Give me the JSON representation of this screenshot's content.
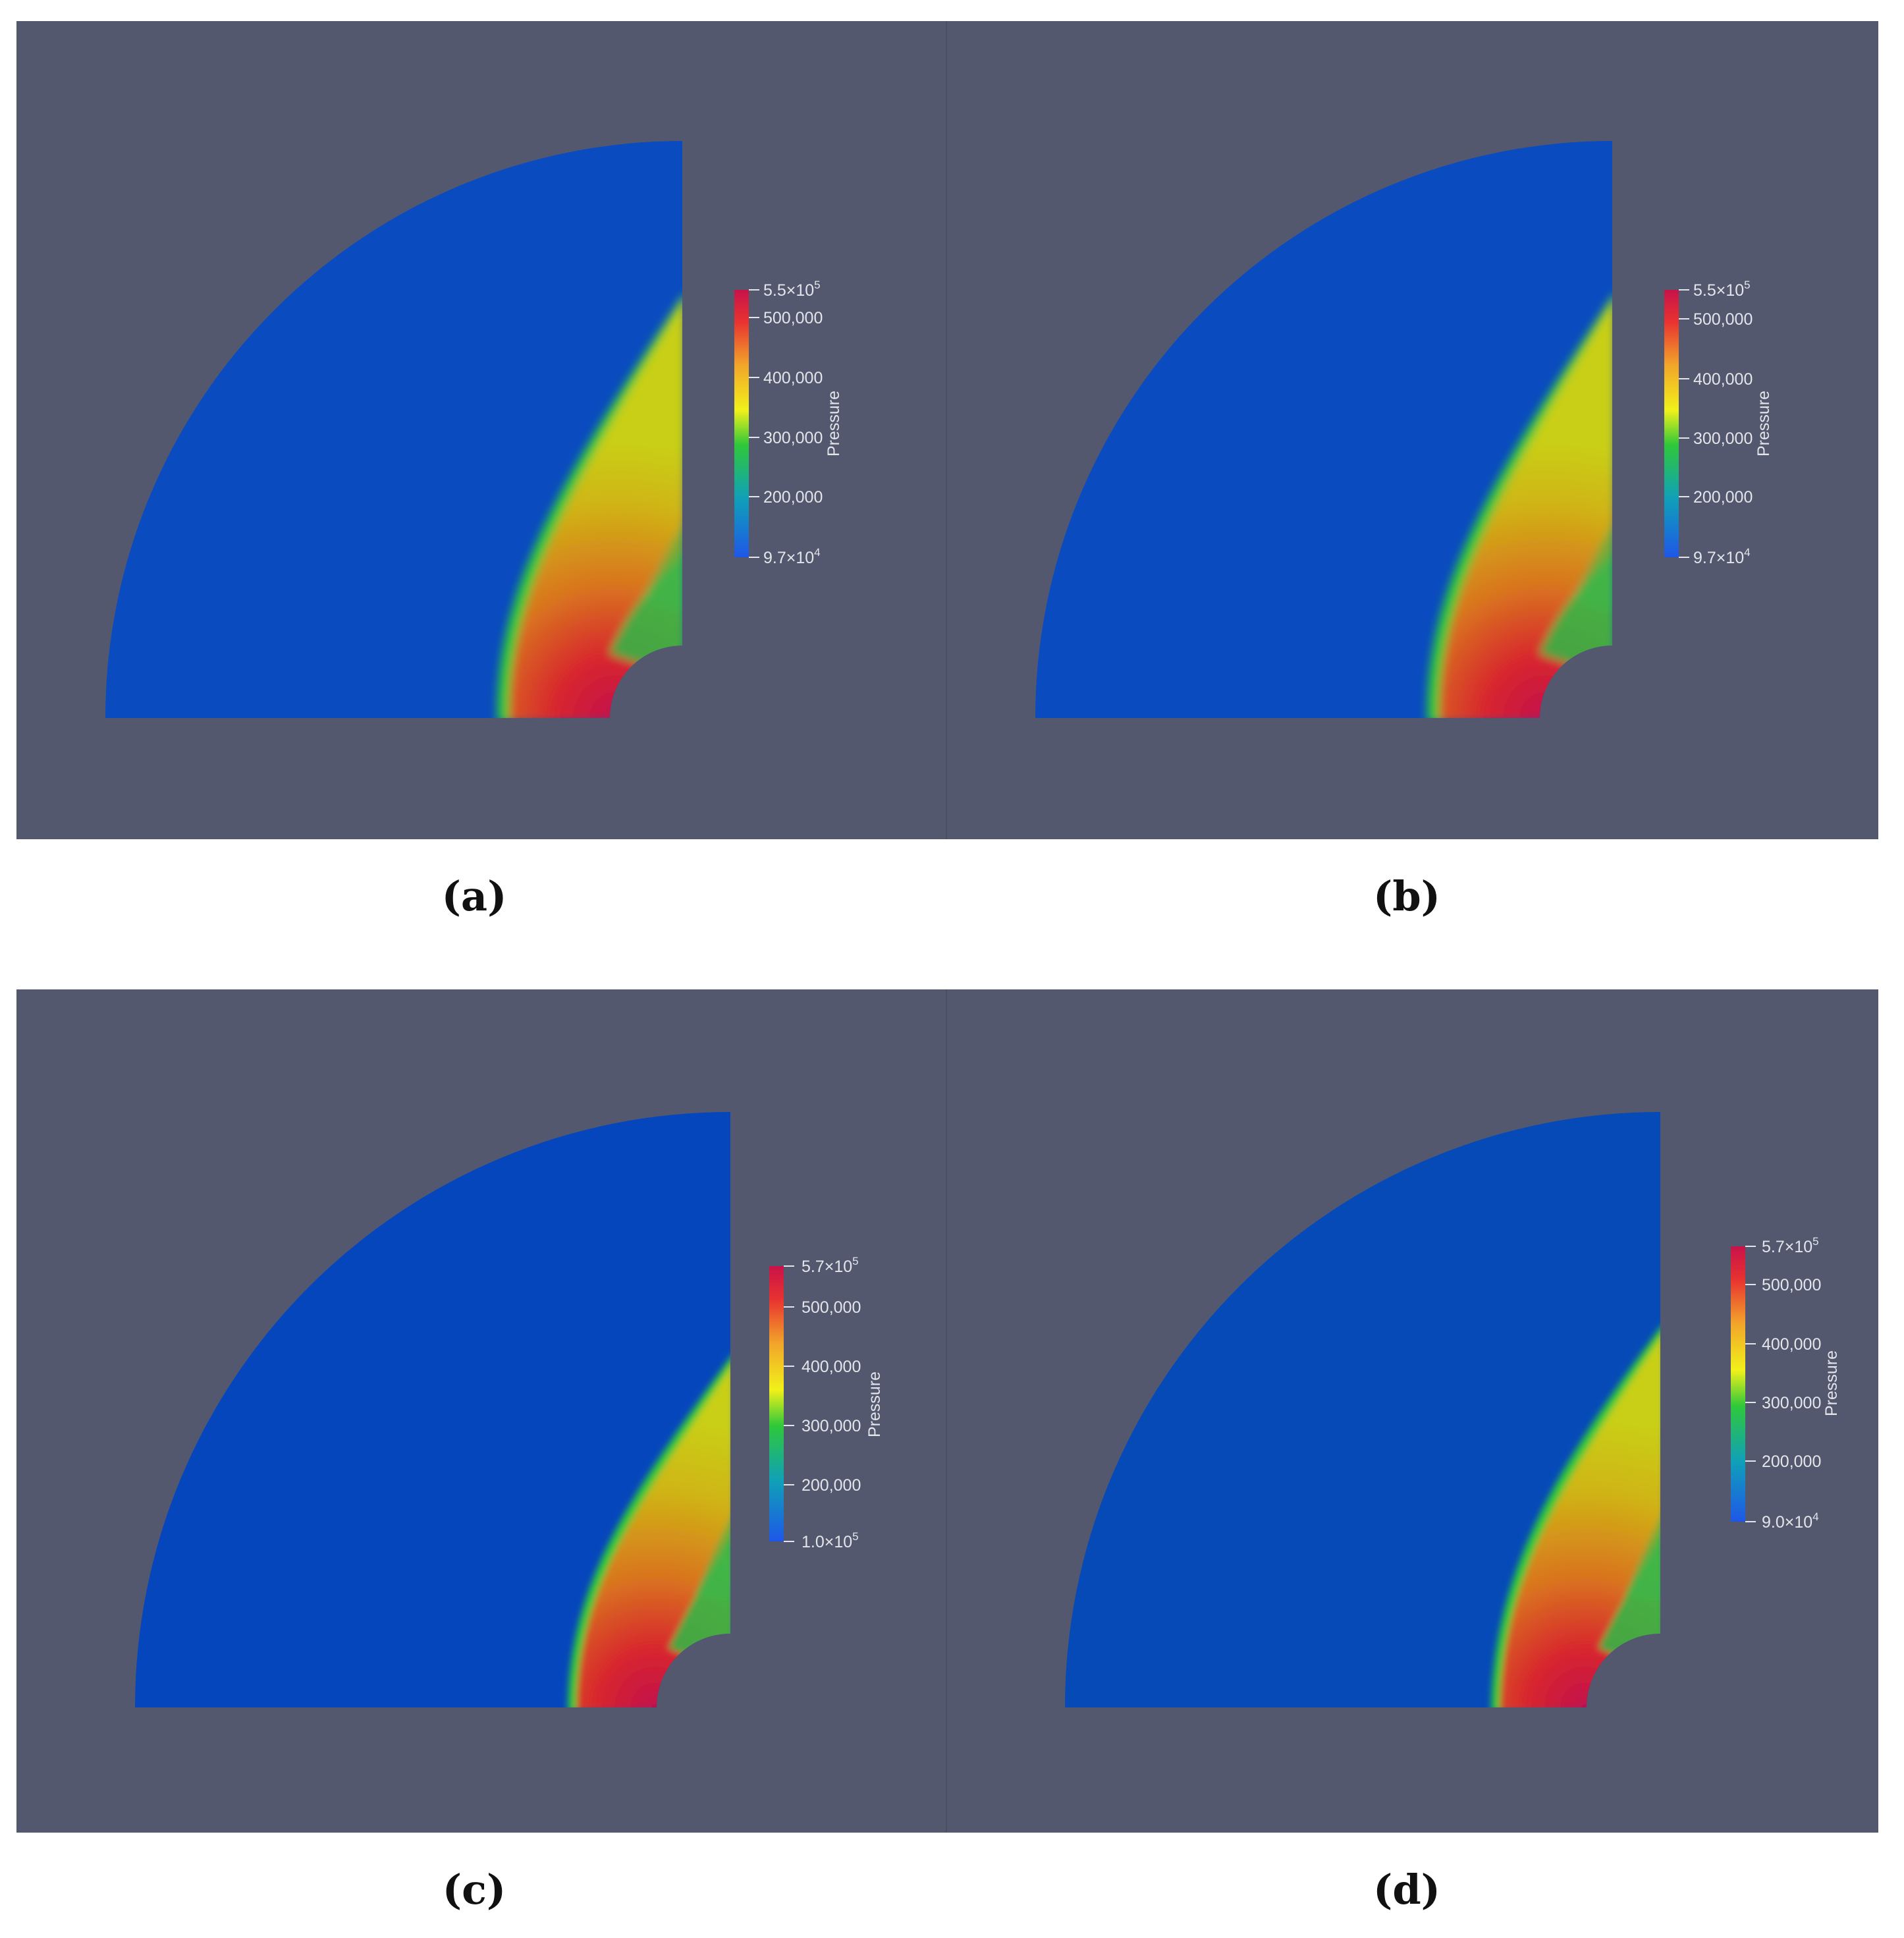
{
  "colors": {
    "background": "#54586e",
    "low_pressure": "#0a4bc0",
    "shock_green": "#2fc83a",
    "mid_yellow": "#d6cf10",
    "high_orange": "#d9731f",
    "peak_red": "#c8124a"
  },
  "panels": [
    {
      "caption": "(a)",
      "colorbar": {
        "title": "Pressure",
        "top_label": "5.5×10",
        "top_exp": "5",
        "ticks": [
          "500,000",
          "400,000",
          "300,000",
          "200,000"
        ],
        "bottom_label": "9.7×10",
        "bottom_exp": "4"
      }
    },
    {
      "caption": "(b)",
      "colorbar": {
        "title": "Pressure",
        "top_label": "5.5×10",
        "top_exp": "5",
        "ticks": [
          "500,000",
          "400,000",
          "300,000",
          "200,000"
        ],
        "bottom_label": "9.7×10",
        "bottom_exp": "4"
      }
    },
    {
      "caption": "(c)",
      "colorbar": {
        "title": "Pressure",
        "top_label": "5.7×10",
        "top_exp": "5",
        "ticks": [
          "500,000",
          "400,000",
          "300,000",
          "200,000"
        ],
        "bottom_label": "1.0×10",
        "bottom_exp": "5"
      }
    },
    {
      "caption": "(d)",
      "colorbar": {
        "title": "Pressure",
        "top_label": "5.7×10",
        "top_exp": "5",
        "ticks": [
          "500,000",
          "400,000",
          "300,000",
          "200,000"
        ],
        "bottom_label": "9.0×10",
        "bottom_exp": "4"
      }
    }
  ]
}
